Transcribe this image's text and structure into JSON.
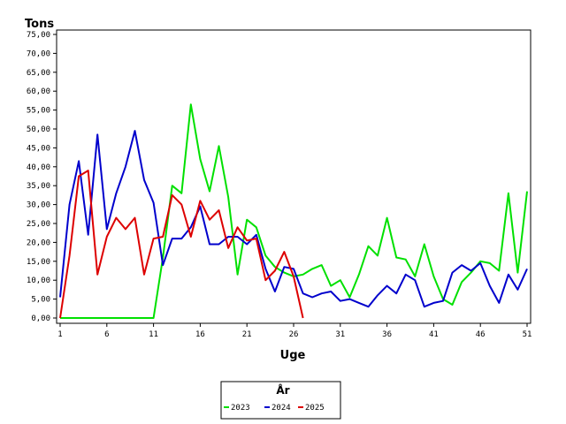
{
  "chart_data": {
    "type": "line",
    "ylabel": "Tons",
    "xlabel": "Uge",
    "ylim": [
      0,
      75
    ],
    "xlim": [
      1,
      51
    ],
    "yticks": [
      "0,00",
      "5,00",
      "10,00",
      "15,00",
      "20,00",
      "25,00",
      "30,00",
      "35,00",
      "40,00",
      "45,00",
      "50,00",
      "55,00",
      "60,00",
      "65,00",
      "70,00",
      "75,00"
    ],
    "xticks": [
      "1",
      "6",
      "11",
      "16",
      "21",
      "26",
      "31",
      "36",
      "41",
      "46",
      "51"
    ],
    "legend": {
      "title": "År",
      "position": "bottom-center"
    },
    "grid": false,
    "series": [
      {
        "name": "2023",
        "color": "#00e000",
        "x": [
          1,
          2,
          3,
          4,
          5,
          6,
          7,
          8,
          9,
          10,
          11,
          12,
          13,
          14,
          15,
          16,
          17,
          18,
          19,
          20,
          21,
          22,
          23,
          24,
          25,
          26,
          27,
          28,
          29,
          30,
          31,
          32,
          33,
          34,
          35,
          36,
          37,
          38,
          39,
          40,
          41,
          42,
          43,
          44,
          45,
          46,
          47,
          48,
          49,
          50,
          51
        ],
        "values": [
          0,
          0,
          0,
          0,
          0,
          0,
          0,
          0,
          0,
          0,
          0,
          16,
          35,
          33,
          56.5,
          42,
          33.5,
          45.5,
          32,
          11.5,
          26,
          24,
          16.5,
          13.5,
          12,
          11,
          11.5,
          13,
          14,
          8.5,
          10,
          5.5,
          11.5,
          19,
          16.5,
          26.5,
          16,
          15.5,
          11,
          19.5,
          11,
          5,
          3.5,
          9.5,
          12,
          15,
          14.5,
          12.5,
          33,
          12,
          33.5
        ]
      },
      {
        "name": "2024",
        "color": "#0000cc",
        "x": [
          1,
          2,
          3,
          4,
          5,
          6,
          7,
          8,
          9,
          10,
          11,
          12,
          13,
          14,
          15,
          16,
          17,
          18,
          19,
          20,
          21,
          22,
          23,
          24,
          25,
          26,
          27,
          28,
          29,
          30,
          31,
          32,
          33,
          34,
          35,
          36,
          37,
          38,
          39,
          40,
          41,
          42,
          43,
          44,
          45,
          46,
          47,
          48,
          49,
          50,
          51
        ],
        "values": [
          5.5,
          30,
          41.5,
          22,
          48.5,
          23.5,
          33,
          40,
          49.5,
          36.5,
          30.5,
          14,
          21,
          21,
          24,
          29.5,
          19.5,
          19.5,
          21.5,
          21.5,
          19.5,
          22,
          13,
          7,
          13.5,
          13,
          6.5,
          5.5,
          6.5,
          7,
          4.5,
          5,
          4,
          3,
          6,
          8.5,
          6.5,
          11.5,
          10,
          3,
          4,
          4.5,
          12,
          14,
          12.5,
          14.5,
          8.5,
          4,
          11.5,
          7.5,
          13
        ]
      },
      {
        "name": "2025",
        "color": "#dd0000",
        "x": [
          1,
          2,
          3,
          4,
          5,
          6,
          7,
          8,
          9,
          10,
          11,
          12,
          13,
          14,
          15,
          16,
          17,
          18,
          19,
          20,
          21,
          22,
          23,
          24,
          25,
          26,
          27
        ],
        "values": [
          0,
          16.5,
          37.5,
          39,
          11.5,
          21.5,
          26.5,
          23.5,
          26.5,
          11.5,
          21,
          21.5,
          32.5,
          30,
          21.5,
          31,
          26,
          28.5,
          18.5,
          24,
          20.5,
          21,
          10,
          12.5,
          17.5,
          11,
          0
        ]
      }
    ]
  }
}
